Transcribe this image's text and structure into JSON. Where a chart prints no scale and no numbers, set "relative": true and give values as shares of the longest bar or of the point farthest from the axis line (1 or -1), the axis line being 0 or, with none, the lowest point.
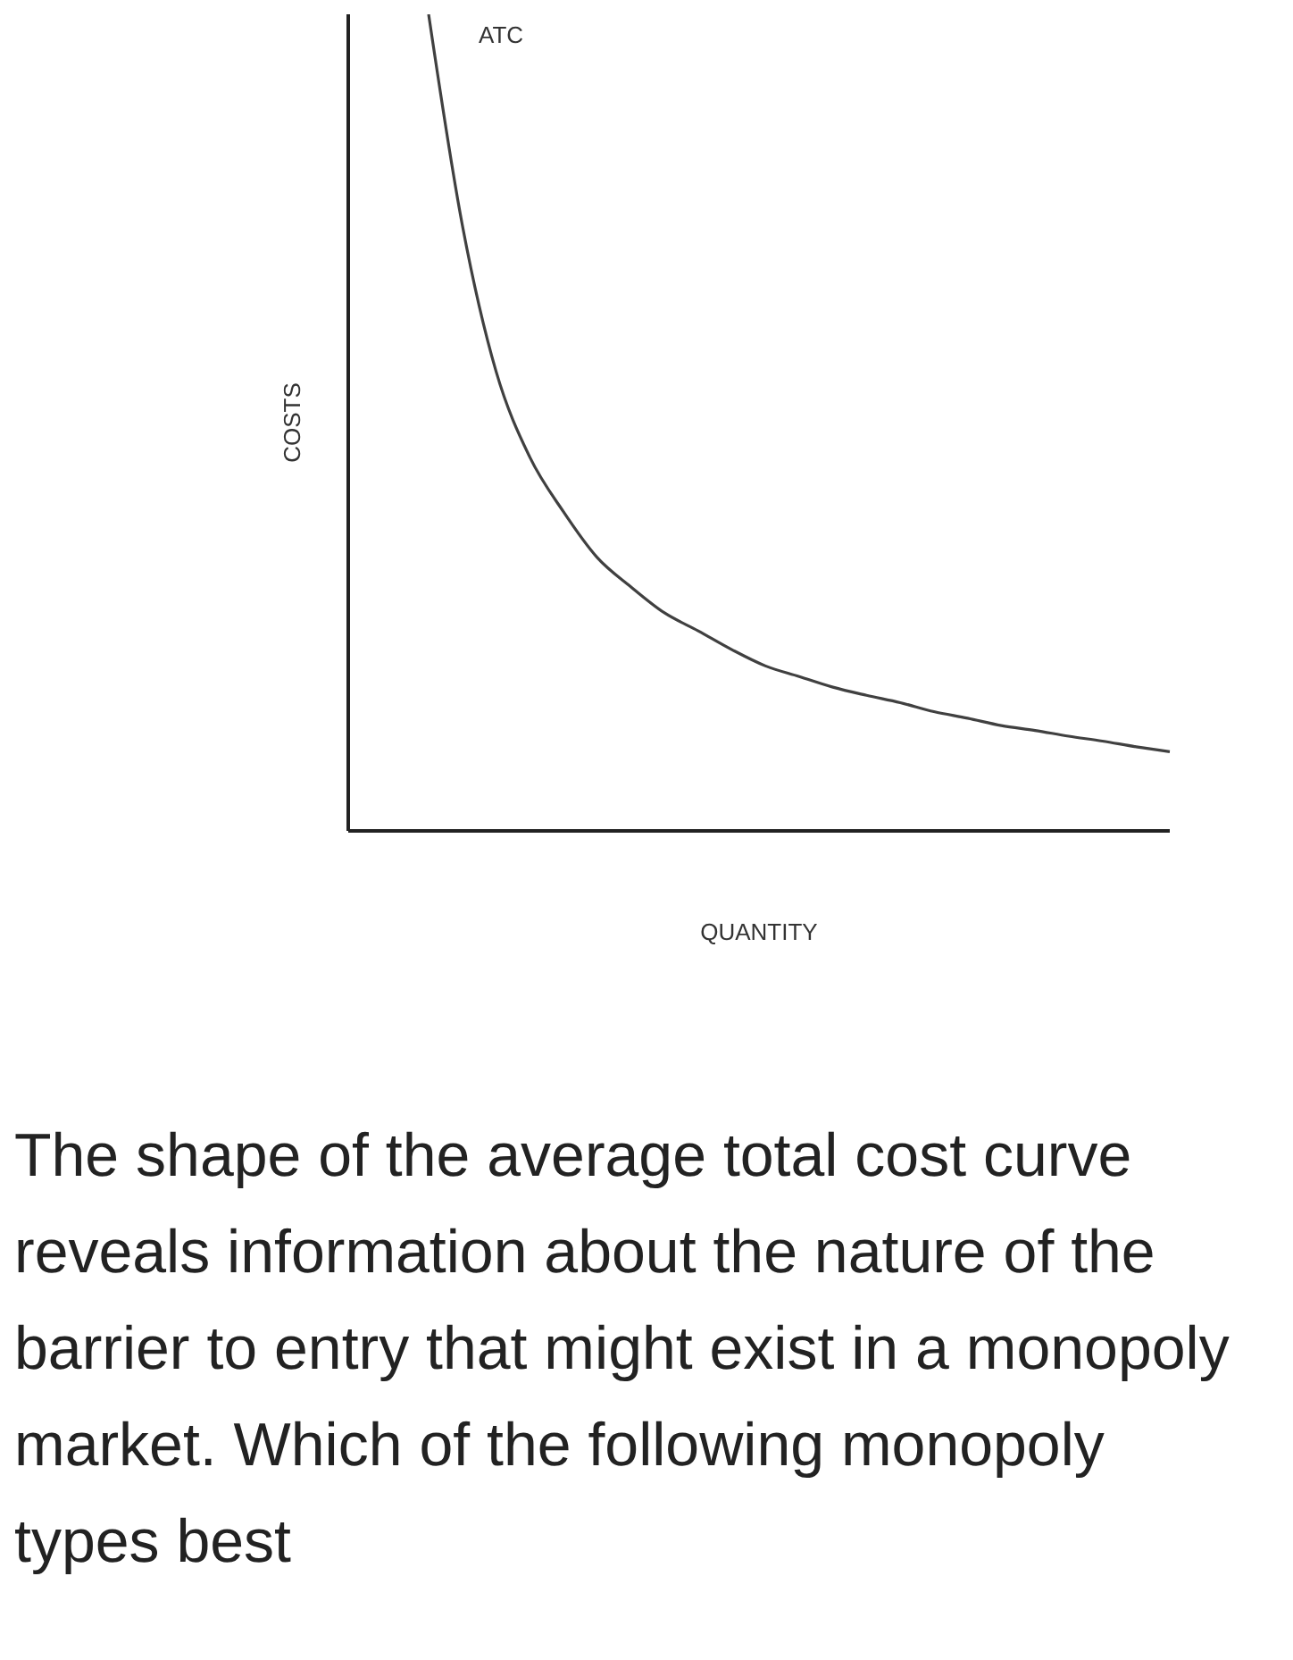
{
  "chart_data": {
    "type": "line",
    "relative": true,
    "xlabel": "QUANTITY",
    "ylabel": "COSTS",
    "marker": "none",
    "annotations": [
      "The shape of the average total cost curve reveals information about the nature of the barrier to entry that might exist in a monopoly market. Which of the following monopoly types best"
    ],
    "categories": [
      null,
      null,
      null,
      null,
      null,
      null,
      null,
      null,
      null,
      null,
      null,
      null,
      null,
      null,
      null,
      null,
      null,
      null,
      null,
      null,
      null,
      null,
      null
    ],
    "series": [
      {
        "name": "ATC",
        "color": "#404040",
        "values": [
          1,
          0.742,
          0.563,
          0.458,
          0.391,
          0.335,
          0.299,
          0.267,
          0.245,
          0.222,
          0.202,
          0.189,
          0.176,
          0.166,
          0.157,
          0.146,
          0.138,
          0.129,
          0.123,
          0.116,
          0.11,
          0.103,
          0.097
        ]
      }
    ]
  }
}
